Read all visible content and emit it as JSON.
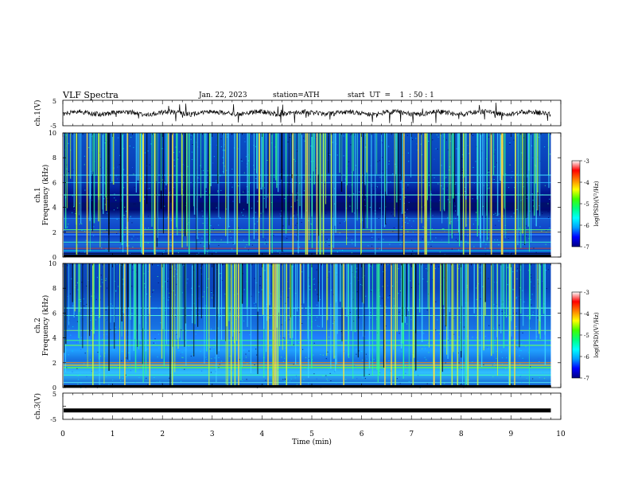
{
  "header": {
    "title": "VLF  Spectra",
    "date": "Jan. 22, 2023",
    "station": "station=ATH",
    "start": "start  UT  =    1  : 50 : 1"
  },
  "chart_data": [
    {
      "type": "line",
      "panel": "ch1-waveform",
      "ylabel": "ch.1(V)",
      "y_ticks": [
        "5",
        "-5"
      ],
      "ylim": [
        -5,
        5
      ],
      "xlim": [
        0,
        10
      ],
      "level": 0,
      "description_values": "noisy trace near 0 V with spikes"
    },
    {
      "type": "heatmap",
      "panel": "ch1-spectrogram",
      "ylabel": "Frequency  (kHz)",
      "ylabel_ch": "ch.1",
      "y_ticks": [
        "0",
        "2",
        "4",
        "6",
        "8",
        "10"
      ],
      "ylim": [
        0,
        10
      ],
      "xlim": [
        0,
        10
      ],
      "data_end_min": 9.8
    },
    {
      "type": "heatmap",
      "panel": "ch2-spectrogram",
      "ylabel": "Frequency  (kHz)",
      "ylabel_ch": "ch.2",
      "y_ticks": [
        "0",
        "2",
        "4",
        "6",
        "8",
        "10"
      ],
      "ylim": [
        0,
        10
      ],
      "xlim": [
        0,
        10
      ],
      "data_end_min": 9.8
    },
    {
      "type": "line",
      "panel": "ch3-waveform",
      "ylabel": "ch.3(V)",
      "y_ticks": [
        "5",
        "-5"
      ],
      "ylim": [
        -5,
        5
      ],
      "xlim": [
        0,
        10
      ],
      "level": -1.6
    }
  ],
  "x_axis": {
    "label": "Time  (min)",
    "ticks": [
      "0",
      "1",
      "2",
      "3",
      "4",
      "5",
      "6",
      "7",
      "8",
      "9",
      "10"
    ]
  },
  "colorbar": {
    "label": "log(PSD)(V²/Hz)",
    "ticks": [
      "-3",
      "-4",
      "-5",
      "-6",
      "-7"
    ],
    "range": [
      -7,
      -3
    ],
    "colors": [
      "#000080",
      "#0000ff",
      "#00a0ff",
      "#00ffff",
      "#00ff80",
      "#40ff00",
      "#ffff00",
      "#ff8000",
      "#ff0000",
      "#ffffff"
    ]
  }
}
